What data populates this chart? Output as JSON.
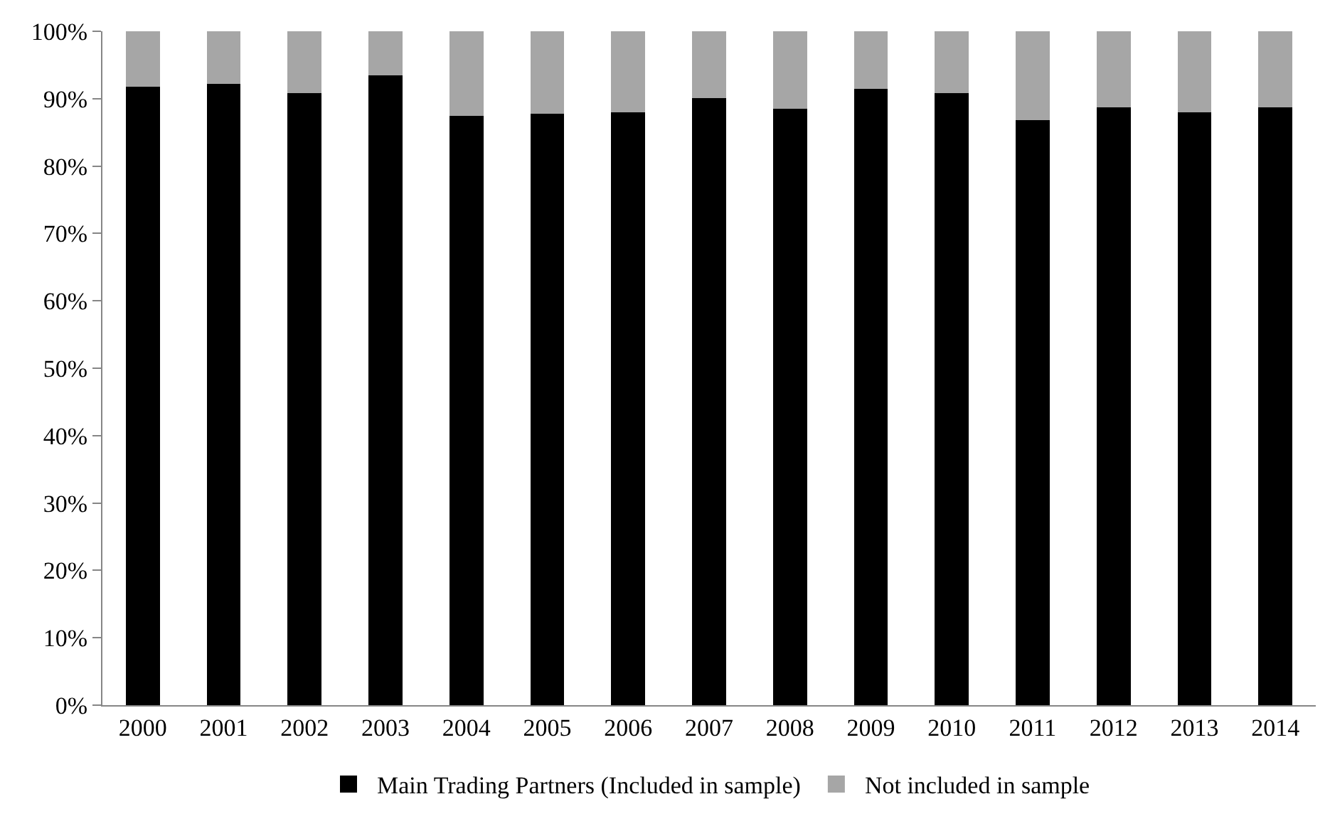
{
  "chart_data": {
    "type": "bar",
    "stacked": true,
    "categories": [
      "2000",
      "2001",
      "2002",
      "2003",
      "2004",
      "2005",
      "2006",
      "2007",
      "2008",
      "2009",
      "2010",
      "2011",
      "2012",
      "2013",
      "2014"
    ],
    "series": [
      {
        "name": "Main Trading Partners (Included in sample)",
        "color": "#000000",
        "values": [
          91.8,
          92.2,
          90.8,
          93.5,
          87.4,
          87.8,
          88.0,
          90.1,
          88.5,
          91.5,
          90.8,
          86.8,
          88.7,
          88.0,
          88.7
        ]
      },
      {
        "name": "Not included in sample",
        "color": "#a6a6a6",
        "values": [
          8.2,
          7.8,
          9.2,
          6.5,
          12.6,
          12.2,
          12.0,
          9.9,
          11.5,
          8.5,
          9.2,
          13.2,
          11.3,
          12.0,
          11.3
        ]
      }
    ],
    "ylim": [
      0,
      100
    ],
    "yticks": [
      {
        "value": 0,
        "label": "0%"
      },
      {
        "value": 10,
        "label": "10%"
      },
      {
        "value": 20,
        "label": "20%"
      },
      {
        "value": 30,
        "label": "30%"
      },
      {
        "value": 40,
        "label": "40%"
      },
      {
        "value": 50,
        "label": "50%"
      },
      {
        "value": 60,
        "label": "60%"
      },
      {
        "value": 70,
        "label": "70%"
      },
      {
        "value": 80,
        "label": "80%"
      },
      {
        "value": 90,
        "label": "90%"
      },
      {
        "value": 100,
        "label": "100%"
      }
    ],
    "grid": false,
    "legend": "bottom"
  }
}
